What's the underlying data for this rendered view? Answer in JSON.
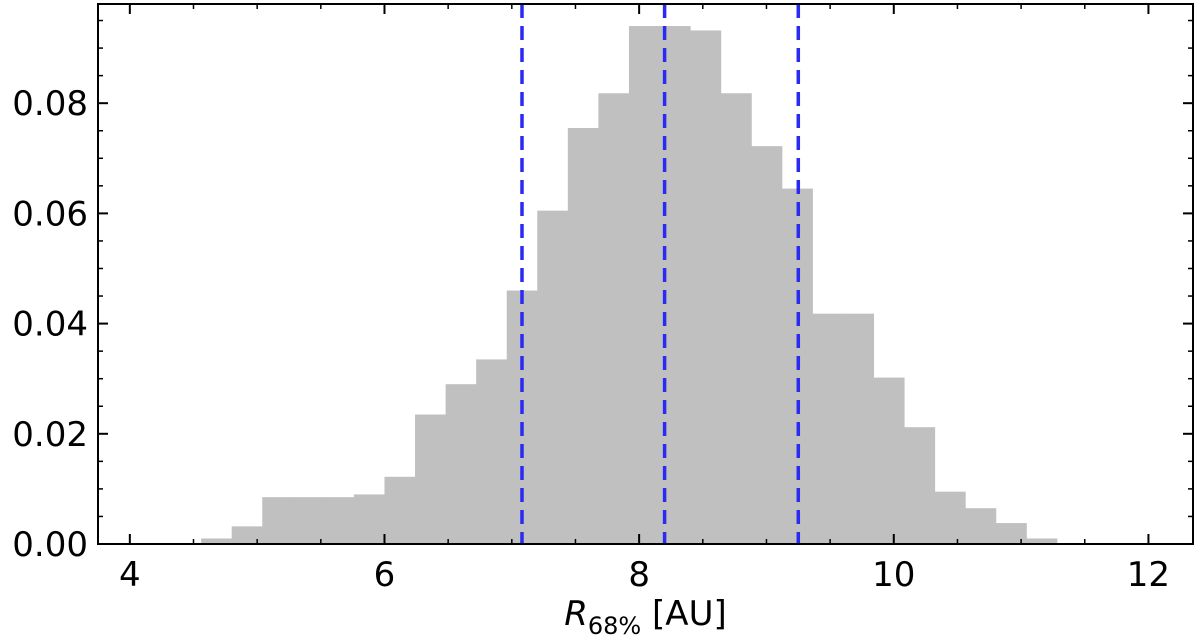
{
  "chart_data": {
    "type": "bar",
    "title": "",
    "xlabel_symbol": "R",
    "xlabel_subscript": "68%",
    "xlabel_unit": " [AU]",
    "ylabel": "",
    "xlim": [
      3.75,
      12.35
    ],
    "ylim": [
      0,
      0.098
    ],
    "xticks": [
      4,
      6,
      8,
      10,
      12
    ],
    "xtick_labels": [
      "4",
      "6",
      "8",
      "10",
      "12"
    ],
    "yticks": [
      0.0,
      0.02,
      0.04,
      0.06,
      0.08
    ],
    "ytick_labels": [
      "0.00",
      "0.02",
      "0.04",
      "0.06",
      "0.08"
    ],
    "grid": false,
    "bar_color": "#c0c0c0",
    "bins": [
      {
        "x0": 4.56,
        "x1": 4.8,
        "value": 0.001
      },
      {
        "x0": 4.8,
        "x1": 5.04,
        "value": 0.0032
      },
      {
        "x0": 5.04,
        "x1": 5.28,
        "value": 0.0085
      },
      {
        "x0": 5.28,
        "x1": 5.52,
        "value": 0.0085
      },
      {
        "x0": 5.52,
        "x1": 5.76,
        "value": 0.0085
      },
      {
        "x0": 5.76,
        "x1": 6.0,
        "value": 0.009
      },
      {
        "x0": 6.0,
        "x1": 6.24,
        "value": 0.0122
      },
      {
        "x0": 6.24,
        "x1": 6.48,
        "value": 0.0235
      },
      {
        "x0": 6.48,
        "x1": 6.72,
        "value": 0.029
      },
      {
        "x0": 6.72,
        "x1": 6.96,
        "value": 0.0335
      },
      {
        "x0": 6.96,
        "x1": 7.2,
        "value": 0.046
      },
      {
        "x0": 7.2,
        "x1": 7.44,
        "value": 0.0605
      },
      {
        "x0": 7.44,
        "x1": 7.68,
        "value": 0.0755
      },
      {
        "x0": 7.68,
        "x1": 7.92,
        "value": 0.0818
      },
      {
        "x0": 7.92,
        "x1": 8.16,
        "value": 0.094
      },
      {
        "x0": 8.16,
        "x1": 8.4,
        "value": 0.094
      },
      {
        "x0": 8.4,
        "x1": 8.64,
        "value": 0.0932
      },
      {
        "x0": 8.64,
        "x1": 8.88,
        "value": 0.0818
      },
      {
        "x0": 8.88,
        "x1": 9.12,
        "value": 0.0722
      },
      {
        "x0": 9.12,
        "x1": 9.36,
        "value": 0.0645
      },
      {
        "x0": 9.36,
        "x1": 9.6,
        "value": 0.0418
      },
      {
        "x0": 9.6,
        "x1": 9.84,
        "value": 0.0418
      },
      {
        "x0": 9.84,
        "x1": 10.08,
        "value": 0.0302
      },
      {
        "x0": 10.08,
        "x1": 10.32,
        "value": 0.0212
      },
      {
        "x0": 10.32,
        "x1": 10.56,
        "value": 0.0095
      },
      {
        "x0": 10.56,
        "x1": 10.8,
        "value": 0.0065
      },
      {
        "x0": 10.8,
        "x1": 11.04,
        "value": 0.0038
      },
      {
        "x0": 11.04,
        "x1": 11.28,
        "value": 0.001
      }
    ],
    "vlines": {
      "x": [
        7.08,
        8.2,
        9.25
      ],
      "color": "#2a2af0",
      "style": "dashed"
    }
  }
}
